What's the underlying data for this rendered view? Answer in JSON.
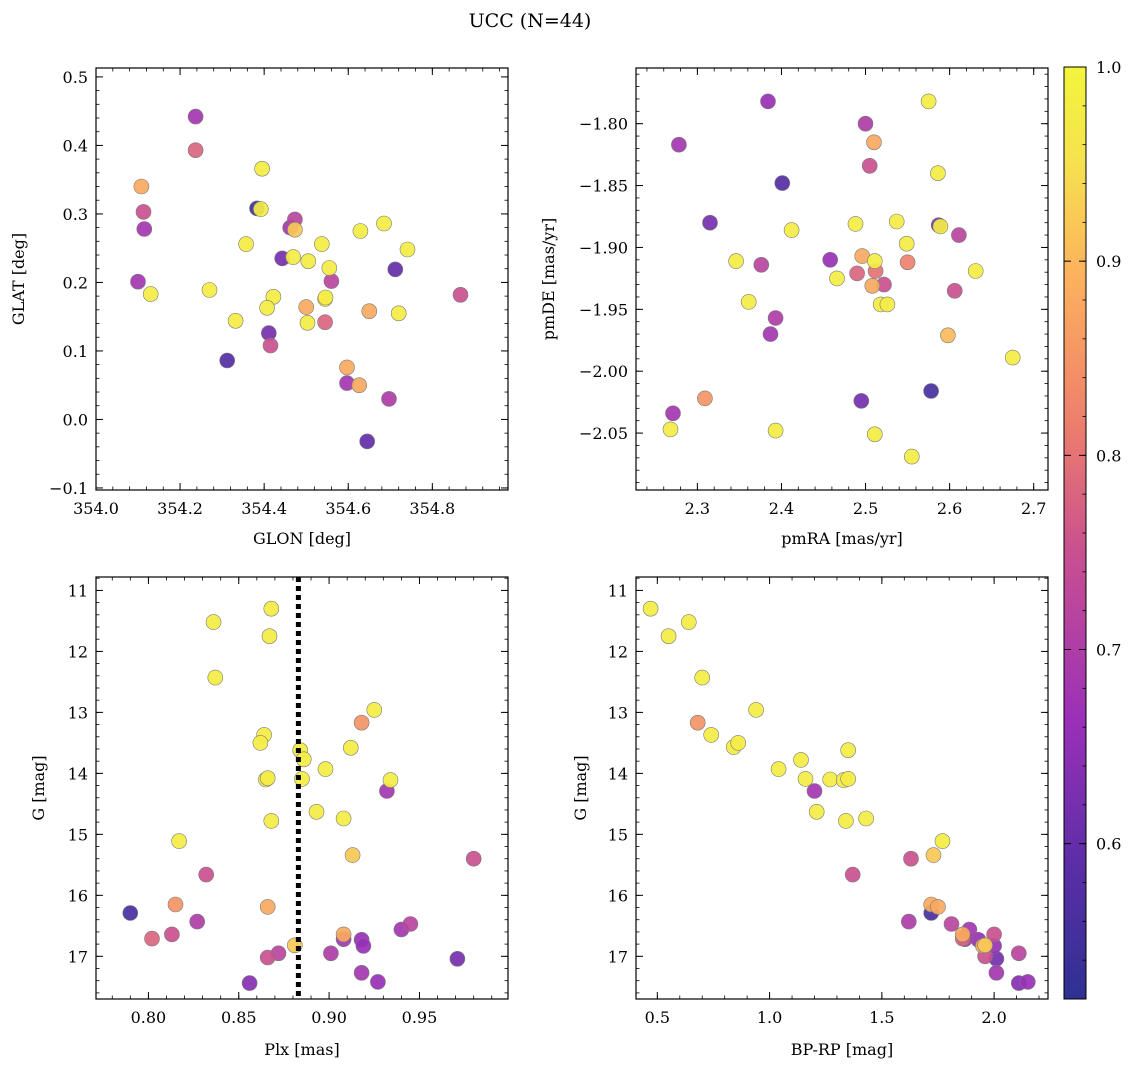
{
  "figure": {
    "title": "UCC (N=44)"
  },
  "colorbar": {
    "range": [
      0.52,
      1.0
    ],
    "ticks": [
      0.6,
      0.7,
      0.8,
      0.9,
      1.0
    ],
    "tick_labels": [
      "0.6",
      "0.7",
      "0.8",
      "0.9",
      "1.0"
    ],
    "colormap": "plasma",
    "colors": [
      "#2e3192",
      "#5a2ea6",
      "#9b30b8",
      "#c9508f",
      "#ee7f6c",
      "#fcb35d",
      "#f6e24e",
      "#f2f53c"
    ]
  },
  "chart_data": [
    {
      "id": "sky",
      "type": "scatter",
      "xlabel": "GLON [deg]",
      "ylabel": "GLAT [deg]",
      "xlim": [
        354.0,
        354.98
      ],
      "ylim": [
        -0.103,
        0.513
      ],
      "y_inverted": false,
      "xticks": [
        354.0,
        354.2,
        354.4,
        354.6,
        354.8
      ],
      "xtick_labels": [
        "354.0",
        "354.2",
        "354.4",
        "354.6",
        "354.8"
      ],
      "yticks": [
        -0.1,
        0.0,
        0.1,
        0.2,
        0.3,
        0.4,
        0.5
      ],
      "ytick_labels": [
        "−0.1",
        "0.0",
        "0.1",
        "0.2",
        "0.3",
        "0.4",
        "0.5"
      ],
      "points": [
        [
          354.237,
          0.442,
          0.68
        ],
        [
          354.237,
          0.393,
          0.78
        ],
        [
          354.108,
          0.34,
          0.88
        ],
        [
          354.113,
          0.303,
          0.75
        ],
        [
          354.115,
          0.278,
          0.68
        ],
        [
          354.1,
          0.201,
          0.68
        ],
        [
          354.13,
          0.183,
          0.98
        ],
        [
          354.27,
          0.189,
          0.98
        ],
        [
          354.332,
          0.144,
          0.98
        ],
        [
          354.357,
          0.256,
          0.98
        ],
        [
          354.395,
          0.366,
          0.98
        ],
        [
          354.392,
          0.307,
          0.98
        ],
        [
          354.383,
          0.308,
          0.55
        ],
        [
          354.462,
          0.28,
          0.68
        ],
        [
          354.473,
          0.292,
          0.72
        ],
        [
          354.473,
          0.277,
          0.92
        ],
        [
          354.469,
          0.237,
          0.98
        ],
        [
          354.443,
          0.235,
          0.62
        ],
        [
          354.505,
          0.231,
          0.98
        ],
        [
          354.537,
          0.256,
          0.98
        ],
        [
          354.555,
          0.221,
          0.98
        ],
        [
          354.56,
          0.202,
          0.72
        ],
        [
          354.5,
          0.164,
          0.88
        ],
        [
          354.503,
          0.141,
          0.98
        ],
        [
          354.545,
          0.176,
          0.98
        ],
        [
          354.546,
          0.178,
          0.98
        ],
        [
          354.545,
          0.142,
          0.78
        ],
        [
          354.422,
          0.179,
          0.98
        ],
        [
          354.407,
          0.163,
          0.98
        ],
        [
          354.411,
          0.126,
          0.62
        ],
        [
          354.415,
          0.108,
          0.75
        ],
        [
          354.312,
          0.086,
          0.58
        ],
        [
          354.629,
          0.275,
          0.98
        ],
        [
          354.685,
          0.286,
          0.98
        ],
        [
          354.712,
          0.219,
          0.6
        ],
        [
          354.741,
          0.248,
          0.98
        ],
        [
          354.65,
          0.158,
          0.88
        ],
        [
          354.72,
          0.155,
          0.98
        ],
        [
          354.597,
          0.076,
          0.88
        ],
        [
          354.597,
          0.053,
          0.68
        ],
        [
          354.626,
          0.05,
          0.88
        ],
        [
          354.697,
          0.03,
          0.7
        ],
        [
          354.645,
          -0.032,
          0.6
        ],
        [
          354.867,
          0.182,
          0.75
        ]
      ]
    },
    {
      "id": "pm",
      "type": "scatter",
      "xlabel": "pmRA [mas/yr]",
      "ylabel": "pmDE [mas/yr]",
      "xlim": [
        2.227,
        2.717
      ],
      "ylim": [
        -2.096,
        -1.755
      ],
      "y_inverted": false,
      "xticks": [
        2.3,
        2.4,
        2.5,
        2.6,
        2.7
      ],
      "xtick_labels": [
        "2.3",
        "2.4",
        "2.5",
        "2.6",
        "2.7"
      ],
      "yticks": [
        -2.05,
        -2.0,
        -1.95,
        -1.9,
        -1.85,
        -1.8
      ],
      "ytick_labels": [
        "−2.05",
        "−2.00",
        "−1.95",
        "−1.90",
        "−1.85",
        "−1.80"
      ],
      "points": [
        [
          2.384,
          -1.782,
          0.66
        ],
        [
          2.278,
          -1.817,
          0.68
        ],
        [
          2.401,
          -1.848,
          0.58
        ],
        [
          2.315,
          -1.88,
          0.62
        ],
        [
          2.346,
          -1.911,
          0.98
        ],
        [
          2.361,
          -1.944,
          0.98
        ],
        [
          2.376,
          -1.914,
          0.72
        ],
        [
          2.393,
          -1.957,
          0.7
        ],
        [
          2.387,
          -1.97,
          0.68
        ],
        [
          2.412,
          -1.886,
          0.98
        ],
        [
          2.458,
          -1.91,
          0.66
        ],
        [
          2.466,
          -1.925,
          0.98
        ],
        [
          2.488,
          -1.881,
          0.98
        ],
        [
          2.49,
          -1.921,
          0.78
        ],
        [
          2.496,
          -1.907,
          0.88
        ],
        [
          2.5,
          -1.8,
          0.7
        ],
        [
          2.505,
          -1.834,
          0.75
        ],
        [
          2.51,
          -1.815,
          0.88
        ],
        [
          2.511,
          -1.911,
          0.98
        ],
        [
          2.512,
          -1.919,
          0.8
        ],
        [
          2.508,
          -1.931,
          0.88
        ],
        [
          2.518,
          -1.946,
          0.98
        ],
        [
          2.522,
          -1.93,
          0.75
        ],
        [
          2.526,
          -1.946,
          0.98
        ],
        [
          2.537,
          -1.879,
          0.98
        ],
        [
          2.549,
          -1.897,
          0.98
        ],
        [
          2.55,
          -1.912,
          0.82
        ],
        [
          2.575,
          -1.782,
          0.98
        ],
        [
          2.586,
          -1.84,
          0.98
        ],
        [
          2.587,
          -1.882,
          0.62
        ],
        [
          2.589,
          -1.883,
          0.98
        ],
        [
          2.611,
          -1.89,
          0.72
        ],
        [
          2.606,
          -1.935,
          0.75
        ],
        [
          2.631,
          -1.919,
          0.98
        ],
        [
          2.598,
          -1.971,
          0.9
        ],
        [
          2.675,
          -1.989,
          0.98
        ],
        [
          2.578,
          -2.016,
          0.56
        ],
        [
          2.495,
          -2.024,
          0.62
        ],
        [
          2.511,
          -2.051,
          0.98
        ],
        [
          2.555,
          -2.069,
          0.98
        ],
        [
          2.309,
          -2.022,
          0.85
        ],
        [
          2.271,
          -2.034,
          0.68
        ],
        [
          2.268,
          -2.047,
          0.98
        ],
        [
          2.393,
          -2.048,
          0.98
        ]
      ]
    },
    {
      "id": "plx",
      "type": "scatter",
      "xlabel": "Plx [mas]",
      "ylabel": "G [mag]",
      "xlim": [
        0.771,
        0.999
      ],
      "ylim": [
        10.78,
        17.7
      ],
      "y_inverted": true,
      "vline": 0.883,
      "xticks": [
        0.8,
        0.85,
        0.9,
        0.95
      ],
      "xtick_labels": [
        "0.80",
        "0.85",
        "0.90",
        "0.95"
      ],
      "yticks": [
        11,
        12,
        13,
        14,
        15,
        16,
        17
      ],
      "ytick_labels": [
        "11",
        "12",
        "13",
        "14",
        "15",
        "16",
        "17"
      ],
      "points": [
        [
          0.836,
          11.52,
          0.98
        ],
        [
          0.868,
          11.3,
          0.98
        ],
        [
          0.867,
          11.75,
          0.98
        ],
        [
          0.837,
          12.43,
          0.98
        ],
        [
          0.925,
          12.96,
          0.98
        ],
        [
          0.918,
          13.17,
          0.85
        ],
        [
          0.864,
          13.37,
          0.98
        ],
        [
          0.862,
          13.5,
          0.98
        ],
        [
          0.884,
          13.62,
          0.98
        ],
        [
          0.886,
          13.77,
          0.98
        ],
        [
          0.912,
          13.58,
          0.98
        ],
        [
          0.898,
          13.93,
          0.98
        ],
        [
          0.865,
          14.1,
          0.98
        ],
        [
          0.866,
          14.08,
          0.98
        ],
        [
          0.885,
          14.09,
          0.98
        ],
        [
          0.934,
          14.11,
          0.98
        ],
        [
          0.932,
          14.29,
          0.68
        ],
        [
          0.893,
          14.63,
          0.98
        ],
        [
          0.908,
          14.74,
          0.98
        ],
        [
          0.868,
          14.78,
          0.98
        ],
        [
          0.817,
          15.11,
          0.98
        ],
        [
          0.913,
          15.34,
          0.92
        ],
        [
          0.98,
          15.4,
          0.75
        ],
        [
          0.832,
          15.66,
          0.75
        ],
        [
          0.815,
          16.15,
          0.85
        ],
        [
          0.866,
          16.19,
          0.88
        ],
        [
          0.79,
          16.29,
          0.56
        ],
        [
          0.827,
          16.43,
          0.7
        ],
        [
          0.813,
          16.64,
          0.75
        ],
        [
          0.802,
          16.71,
          0.78
        ],
        [
          0.908,
          16.64,
          0.88
        ],
        [
          0.908,
          16.72,
          0.68
        ],
        [
          0.918,
          16.73,
          0.66
        ],
        [
          0.919,
          16.83,
          0.66
        ],
        [
          0.881,
          16.82,
          0.92
        ],
        [
          0.901,
          16.95,
          0.7
        ],
        [
          0.945,
          16.47,
          0.72
        ],
        [
          0.94,
          16.56,
          0.68
        ],
        [
          0.866,
          17.02,
          0.75
        ],
        [
          0.872,
          16.95,
          0.72
        ],
        [
          0.971,
          17.04,
          0.62
        ],
        [
          0.918,
          17.27,
          0.68
        ],
        [
          0.856,
          17.44,
          0.64
        ],
        [
          0.927,
          17.42,
          0.66
        ]
      ]
    },
    {
      "id": "cmd",
      "type": "scatter",
      "xlabel": "BP-RP [mag]",
      "ylabel": "G [mag]",
      "xlim": [
        0.405,
        2.24
      ],
      "ylim": [
        10.78,
        17.7
      ],
      "y_inverted": true,
      "xticks": [
        0.5,
        1.0,
        1.5,
        2.0
      ],
      "xtick_labels": [
        "0.5",
        "1.0",
        "1.5",
        "2.0"
      ],
      "yticks": [
        11,
        12,
        13,
        14,
        15,
        16,
        17
      ],
      "ytick_labels": [
        "11",
        "12",
        "13",
        "14",
        "15",
        "16",
        "17"
      ],
      "points": [
        [
          0.47,
          11.3,
          0.98
        ],
        [
          0.55,
          11.75,
          0.98
        ],
        [
          0.64,
          11.52,
          0.98
        ],
        [
          0.7,
          12.43,
          0.98
        ],
        [
          0.68,
          13.17,
          0.85
        ],
        [
          0.74,
          13.37,
          0.98
        ],
        [
          0.94,
          12.96,
          0.98
        ],
        [
          0.84,
          13.57,
          0.98
        ],
        [
          0.86,
          13.5,
          0.98
        ],
        [
          1.04,
          13.93,
          0.98
        ],
        [
          1.14,
          13.78,
          0.98
        ],
        [
          1.16,
          14.09,
          0.98
        ],
        [
          1.21,
          14.63,
          0.98
        ],
        [
          1.2,
          14.29,
          0.68
        ],
        [
          1.27,
          14.1,
          0.98
        ],
        [
          1.33,
          14.11,
          0.98
        ],
        [
          1.35,
          14.09,
          0.98
        ],
        [
          1.35,
          13.62,
          0.98
        ],
        [
          1.34,
          14.78,
          0.98
        ],
        [
          1.43,
          14.74,
          0.98
        ],
        [
          1.37,
          15.66,
          0.75
        ],
        [
          1.63,
          15.4,
          0.75
        ],
        [
          1.73,
          15.34,
          0.92
        ],
        [
          1.77,
          15.11,
          0.98
        ],
        [
          1.62,
          16.43,
          0.7
        ],
        [
          1.72,
          16.29,
          0.56
        ],
        [
          1.72,
          16.15,
          0.88
        ],
        [
          1.75,
          16.19,
          0.88
        ],
        [
          1.81,
          16.47,
          0.72
        ],
        [
          1.86,
          16.64,
          0.88
        ],
        [
          1.86,
          16.71,
          0.78
        ],
        [
          1.87,
          16.72,
          0.68
        ],
        [
          1.89,
          16.56,
          0.68
        ],
        [
          1.93,
          16.73,
          0.66
        ],
        [
          1.96,
          16.82,
          0.92
        ],
        [
          1.95,
          16.83,
          0.88
        ],
        [
          2.0,
          16.64,
          0.75
        ],
        [
          2.0,
          16.83,
          0.66
        ],
        [
          1.96,
          17.0,
          0.75
        ],
        [
          2.01,
          17.04,
          0.62
        ],
        [
          2.01,
          17.27,
          0.68
        ],
        [
          2.11,
          16.95,
          0.72
        ],
        [
          2.11,
          17.44,
          0.64
        ],
        [
          2.15,
          17.42,
          0.66
        ]
      ]
    }
  ]
}
